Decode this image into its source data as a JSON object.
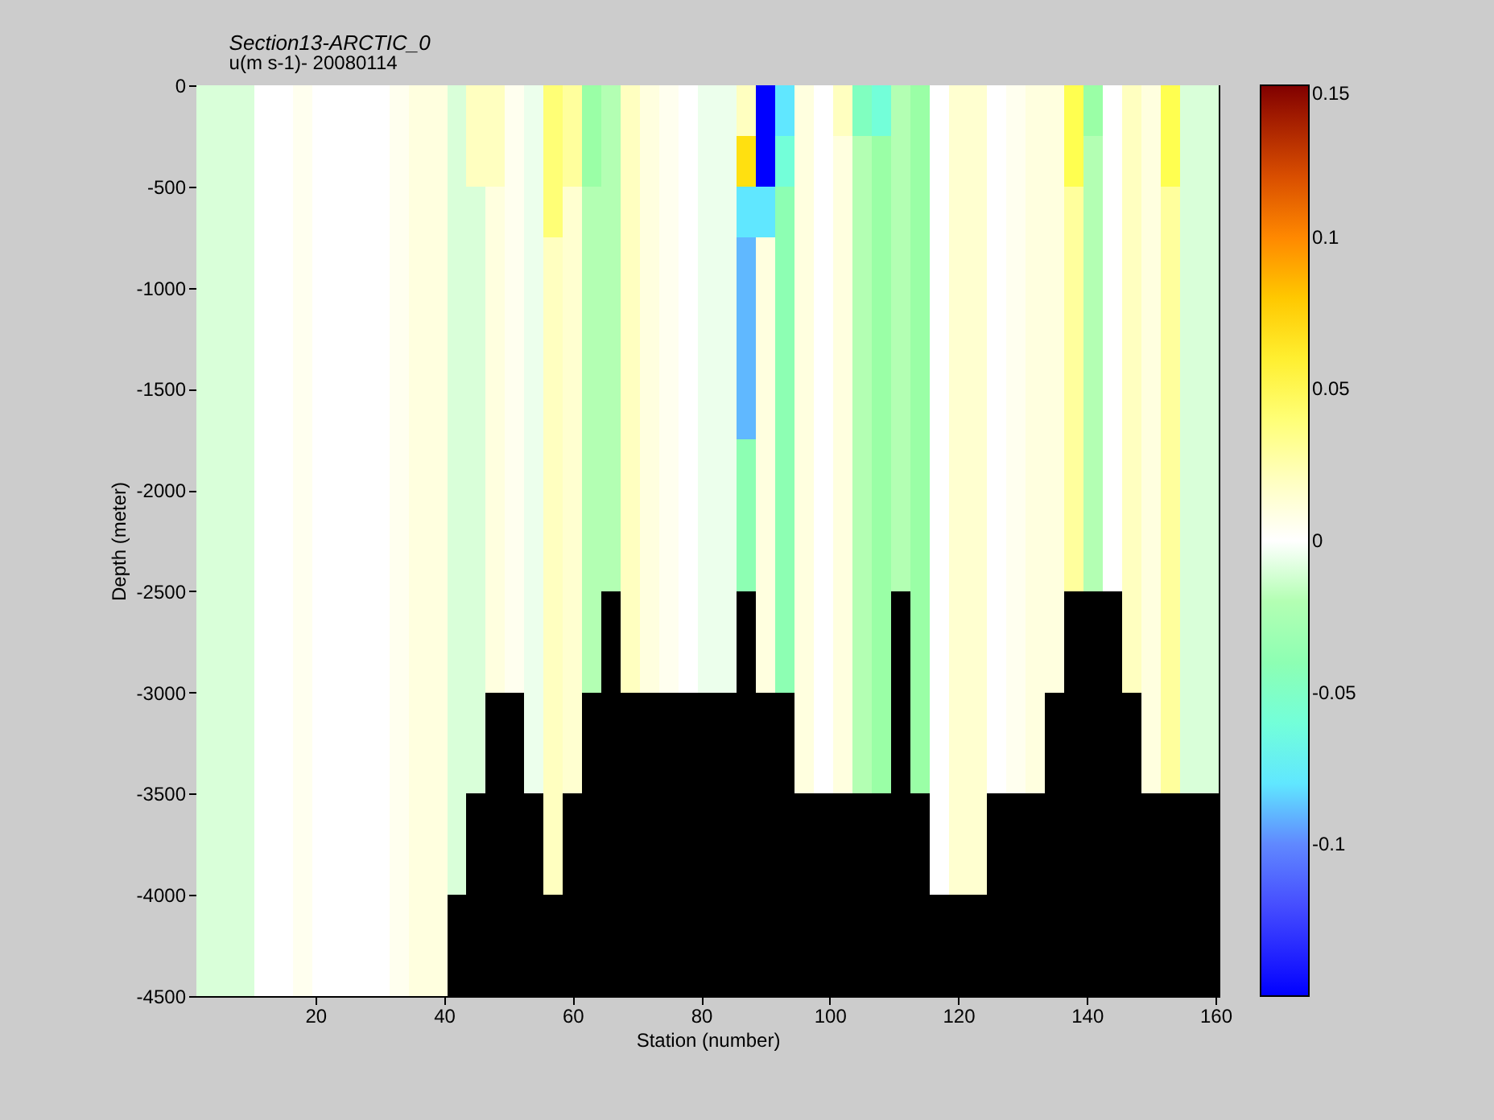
{
  "chart_data": {
    "type": "heatmap",
    "title": "Section13-ARCTIC_0",
    "subtitle": "u(m s-1)- 20080114",
    "xlabel": "Station (number)",
    "ylabel": "Depth (meter)",
    "xlim": [
      1.5,
      160.5
    ],
    "xticks": [
      20,
      40,
      60,
      80,
      100,
      120,
      140,
      160
    ],
    "ylim": [
      -4500,
      0
    ],
    "yticks": [
      -4500,
      -4000,
      -3500,
      -3000,
      -2500,
      -2000,
      -1500,
      -1000,
      -500,
      0
    ],
    "clim": [
      -0.15,
      0.15
    ],
    "cticks": [
      -0.1,
      -0.05,
      0,
      0.05,
      0.1,
      0.15
    ],
    "grid": false,
    "cells": [
      [
        -0.01,
        -0.01,
        -0.01,
        0,
        0,
        0.005,
        0,
        0,
        0,
        0,
        0.005,
        0.01,
        0.01,
        -0.01,
        0.02,
        0.02,
        0.005,
        -0.005,
        0.04,
        0.03,
        -0.03,
        -0.02,
        0.02,
        0.01,
        0.005,
        0,
        -0.005,
        -0.005,
        0.02,
        -0.15,
        -0.08,
        0.01,
        0,
        0.02,
        -0.05,
        -0.06,
        -0.02,
        -0.03,
        0,
        0.015,
        0.015,
        0,
        0.005,
        0.01,
        0.01,
        0.05,
        -0.03,
        0,
        0.02,
        0.01,
        0.05,
        -0.01,
        -0.01
      ],
      [
        -0.01,
        -0.01,
        -0.01,
        0,
        0,
        0.005,
        0,
        0,
        0,
        0,
        0.005,
        0.01,
        0.01,
        -0.01,
        0.02,
        0.02,
        0.005,
        -0.005,
        0.04,
        0.03,
        -0.03,
        -0.02,
        0.02,
        0.01,
        0.005,
        0,
        -0.005,
        -0.005,
        0.07,
        -0.15,
        -0.06,
        0.01,
        0,
        0.01,
        -0.02,
        -0.03,
        -0.02,
        -0.03,
        0,
        0.015,
        0.015,
        0,
        0.005,
        0.01,
        0.01,
        0.05,
        -0.02,
        0,
        0.02,
        0.01,
        0.05,
        -0.01,
        -0.01
      ],
      [
        -0.01,
        -0.01,
        -0.01,
        0,
        0,
        0.005,
        0,
        0,
        0,
        0,
        0.005,
        0.01,
        0.01,
        -0.01,
        -0.01,
        0.01,
        0.005,
        -0.005,
        0.04,
        0.015,
        -0.02,
        -0.02,
        0.02,
        0.01,
        0.005,
        0,
        -0.005,
        -0.005,
        -0.08,
        -0.08,
        -0.04,
        0.01,
        0,
        0.01,
        -0.02,
        -0.03,
        -0.02,
        -0.03,
        0,
        0.015,
        0.015,
        0,
        0.005,
        0.01,
        0.01,
        0.03,
        -0.02,
        0,
        0.02,
        0.01,
        0.03,
        -0.01,
        -0.01
      ],
      [
        -0.01,
        -0.01,
        -0.01,
        0,
        0,
        0.005,
        0,
        0,
        0,
        0,
        0.005,
        0.01,
        0.01,
        -0.01,
        -0.01,
        0.01,
        0.005,
        -0.005,
        0.02,
        0.015,
        -0.02,
        -0.02,
        0.02,
        0.01,
        0.005,
        0,
        -0.005,
        -0.005,
        -0.09,
        0.01,
        -0.04,
        0.01,
        0,
        0.01,
        -0.02,
        -0.03,
        -0.02,
        -0.03,
        0,
        0.015,
        0.015,
        0,
        0.005,
        0.01,
        0.01,
        0.03,
        -0.02,
        0,
        0.02,
        0.01,
        0.03,
        -0.01,
        -0.01
      ],
      [
        -0.01,
        -0.01,
        -0.01,
        0,
        0,
        0.005,
        0,
        0,
        0,
        0,
        0.005,
        0.01,
        0.01,
        -0.01,
        -0.01,
        0.01,
        0.005,
        -0.005,
        0.02,
        0.015,
        -0.02,
        -0.02,
        0.02,
        0.01,
        0.005,
        0,
        -0.005,
        -0.005,
        -0.09,
        0.01,
        -0.04,
        0.01,
        0,
        0.01,
        -0.02,
        -0.03,
        -0.02,
        -0.03,
        0,
        0.015,
        0.015,
        0,
        0.005,
        0.01,
        0.01,
        0.03,
        -0.02,
        0,
        0.02,
        0.01,
        0.03,
        -0.01,
        -0.01
      ],
      [
        -0.01,
        -0.01,
        -0.01,
        0,
        0,
        0.005,
        0,
        0,
        0,
        0,
        0.005,
        0.01,
        0.01,
        -0.01,
        -0.01,
        0.01,
        0.005,
        -0.005,
        0.02,
        0.015,
        -0.02,
        -0.02,
        0.02,
        0.01,
        0.005,
        0,
        -0.005,
        -0.005,
        -0.09,
        0.01,
        -0.04,
        0.01,
        0,
        0.01,
        -0.02,
        -0.03,
        -0.02,
        -0.03,
        0,
        0.015,
        0.015,
        0,
        0.005,
        0.01,
        0.01,
        0.03,
        -0.02,
        0,
        0.02,
        0.01,
        0.03,
        -0.01,
        -0.01
      ],
      [
        -0.01,
        -0.01,
        -0.01,
        0,
        0,
        0.005,
        0,
        0,
        0,
        0,
        0.005,
        0.01,
        0.01,
        -0.01,
        -0.01,
        0.01,
        0.005,
        -0.005,
        0.02,
        0.015,
        -0.02,
        -0.02,
        0.02,
        0.01,
        0.005,
        0,
        -0.005,
        -0.005,
        -0.09,
        0.01,
        -0.04,
        0.01,
        0,
        0.01,
        -0.02,
        -0.03,
        -0.02,
        -0.03,
        0,
        0.015,
        0.015,
        0,
        0.005,
        0.01,
        0.01,
        0.03,
        -0.02,
        0,
        0.02,
        0.01,
        0.03,
        -0.01,
        -0.01
      ],
      [
        -0.01,
        -0.01,
        -0.01,
        0,
        0,
        0.005,
        0,
        0,
        0,
        0,
        0.005,
        0.01,
        0.01,
        -0.01,
        -0.01,
        0.01,
        0.005,
        -0.005,
        0.02,
        0.015,
        -0.02,
        -0.02,
        0.02,
        0.01,
        0.005,
        0,
        -0.005,
        -0.005,
        -0.04,
        0.01,
        -0.04,
        0.01,
        0,
        0.01,
        -0.02,
        -0.03,
        -0.02,
        -0.03,
        0,
        0.015,
        0.015,
        0,
        0.005,
        0.01,
        0.01,
        0.03,
        -0.02,
        0,
        0.02,
        0.01,
        0.03,
        -0.01,
        -0.01
      ],
      [
        -0.01,
        -0.01,
        -0.01,
        0,
        0,
        0.005,
        0,
        0,
        0,
        0,
        0.005,
        0.01,
        0.01,
        -0.01,
        -0.01,
        0.01,
        0.005,
        -0.005,
        0.02,
        0.015,
        -0.02,
        -0.02,
        0.02,
        0.01,
        0.005,
        0,
        -0.005,
        -0.005,
        -0.04,
        0.01,
        -0.04,
        0.01,
        0,
        0.01,
        -0.02,
        -0.03,
        -0.02,
        -0.03,
        0,
        0.015,
        0.015,
        0,
        0.005,
        0.01,
        0.01,
        0.03,
        -0.02,
        0,
        0.02,
        0.01,
        0.03,
        -0.01,
        -0.01
      ],
      [
        -0.01,
        -0.01,
        -0.01,
        0,
        0,
        0.005,
        0,
        0,
        0,
        0,
        0.005,
        0.01,
        0.01,
        -0.01,
        -0.01,
        0.01,
        0.005,
        -0.005,
        0.02,
        0.015,
        -0.02,
        -0.02,
        0.02,
        0.01,
        0.005,
        0,
        -0.005,
        -0.005,
        -0.04,
        0.01,
        -0.04,
        0.01,
        0,
        0.01,
        -0.02,
        -0.03,
        -0.02,
        -0.03,
        0,
        0.015,
        0.015,
        0,
        0.005,
        0.01,
        0.01,
        0.03,
        -0.02,
        0,
        0.02,
        0.01,
        0.03,
        -0.01,
        -0.01
      ],
      [
        -0.01,
        -0.01,
        -0.01,
        0,
        0,
        0.005,
        0,
        0,
        0,
        0,
        0.005,
        0.01,
        0.01,
        -0.01,
        -0.01,
        0.01,
        0.005,
        -0.005,
        0.02,
        0.015,
        -0.02,
        null,
        0.02,
        0.01,
        0.005,
        0,
        -0.005,
        -0.005,
        null,
        0.01,
        -0.04,
        0.01,
        0,
        0.01,
        -0.02,
        -0.03,
        null,
        -0.03,
        0,
        0.015,
        0.015,
        0,
        0.005,
        0.01,
        0.01,
        null,
        null,
        null,
        0.02,
        0.01,
        0.03,
        -0.01,
        -0.01
      ],
      [
        -0.01,
        -0.01,
        -0.01,
        0,
        0,
        0.005,
        0,
        0,
        0,
        0,
        0.005,
        0.01,
        0.01,
        -0.01,
        -0.01,
        0.01,
        0.005,
        -0.005,
        0.02,
        0.015,
        -0.02,
        null,
        0.02,
        0.01,
        0.005,
        0,
        -0.005,
        -0.005,
        null,
        0.01,
        -0.04,
        0.01,
        0,
        0.01,
        -0.02,
        -0.03,
        null,
        -0.03,
        0,
        0.015,
        0.015,
        0,
        0.005,
        0.01,
        0.01,
        null,
        null,
        null,
        0.02,
        0.01,
        0.03,
        -0.01,
        -0.01
      ],
      [
        -0.01,
        -0.01,
        -0.01,
        0,
        0,
        0.005,
        0,
        0,
        0,
        0,
        0.005,
        0.01,
        0.01,
        -0.01,
        -0.01,
        null,
        null,
        -0.005,
        0.02,
        0.015,
        null,
        null,
        null,
        null,
        null,
        null,
        null,
        null,
        null,
        null,
        null,
        0.01,
        0,
        0.01,
        -0.02,
        -0.03,
        null,
        -0.03,
        0,
        0.015,
        0.015,
        0,
        0.005,
        0.01,
        null,
        null,
        null,
        null,
        null,
        0.01,
        0.03,
        -0.01,
        -0.01
      ],
      [
        -0.01,
        -0.01,
        -0.01,
        0,
        0,
        0.005,
        0,
        0,
        0,
        0,
        0.005,
        0.01,
        0.01,
        -0.01,
        -0.01,
        null,
        null,
        -0.005,
        0.02,
        0.015,
        null,
        null,
        null,
        null,
        null,
        null,
        null,
        null,
        null,
        null,
        null,
        0.01,
        0,
        0.01,
        -0.02,
        -0.03,
        null,
        -0.03,
        0,
        0.015,
        0.015,
        0,
        0.005,
        0.01,
        null,
        null,
        null,
        null,
        null,
        0.01,
        0.03,
        -0.01,
        -0.01
      ],
      [
        -0.01,
        -0.01,
        -0.01,
        0,
        0,
        0.005,
        0,
        0,
        0,
        0,
        0.005,
        0.01,
        0.01,
        -0.01,
        null,
        null,
        null,
        null,
        0.02,
        null,
        null,
        null,
        null,
        null,
        null,
        null,
        null,
        null,
        null,
        null,
        null,
        null,
        null,
        null,
        null,
        null,
        null,
        null,
        0,
        0.015,
        0.015,
        null,
        null,
        null,
        null,
        null,
        null,
        null,
        null,
        null,
        null,
        null,
        null
      ],
      [
        -0.01,
        -0.01,
        -0.01,
        0,
        0,
        0.005,
        0,
        0,
        0,
        0,
        0.005,
        0.01,
        0.01,
        -0.01,
        null,
        null,
        null,
        null,
        0.02,
        null,
        null,
        null,
        null,
        null,
        null,
        null,
        null,
        null,
        null,
        null,
        null,
        null,
        null,
        null,
        null,
        null,
        null,
        null,
        0,
        0.015,
        0.015,
        null,
        null,
        null,
        null,
        null,
        null,
        null,
        null,
        null,
        null,
        null,
        null
      ],
      [
        -0.01,
        -0.01,
        -0.01,
        0,
        0,
        0.005,
        0,
        0,
        0,
        0,
        0.005,
        0.01,
        0.01,
        null,
        null,
        null,
        null,
        null,
        null,
        null,
        null,
        null,
        null,
        null,
        null,
        null,
        null,
        null,
        null,
        null,
        null,
        null,
        null,
        null,
        null,
        null,
        null,
        null,
        null,
        null,
        null,
        null,
        null,
        null,
        null,
        null,
        null,
        null,
        null,
        null,
        null,
        null,
        null
      ],
      [
        -0.01,
        -0.01,
        -0.01,
        0,
        0,
        0.005,
        0,
        0,
        0,
        0,
        0.005,
        0.01,
        0.01,
        null,
        null,
        null,
        null,
        null,
        null,
        null,
        null,
        null,
        null,
        null,
        null,
        null,
        null,
        null,
        null,
        null,
        null,
        null,
        null,
        null,
        null,
        null,
        null,
        null,
        null,
        null,
        null,
        null,
        null,
        null,
        null,
        null,
        null,
        null,
        null,
        null,
        null,
        null,
        null
      ]
    ]
  }
}
